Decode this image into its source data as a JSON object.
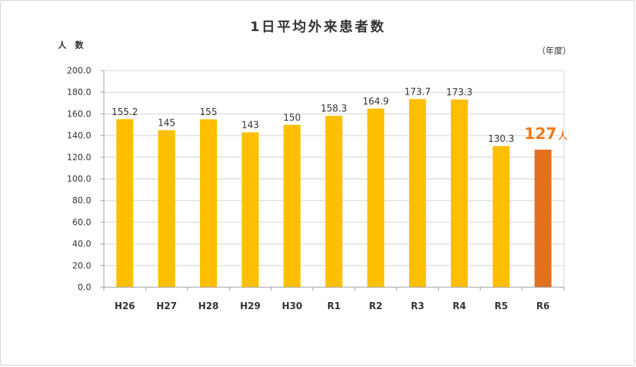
{
  "chart_data": {
    "type": "bar",
    "title": "1日平均外来患者数",
    "ylabel": "人 数",
    "unit_note": "（年度）",
    "categories": [
      "H26",
      "H27",
      "H28",
      "H29",
      "H30",
      "R1",
      "R2",
      "R3",
      "R4",
      "R5",
      "R6"
    ],
    "values": [
      155.2,
      145,
      155,
      143,
      150,
      158.3,
      164.9,
      173.7,
      173.3,
      130.3,
      127
    ],
    "data_labels": [
      "155.2",
      "145",
      "155",
      "143",
      "150",
      "158.3",
      "164.9",
      "173.7",
      "173.3",
      "130.3",
      "127"
    ],
    "highlight": {
      "index": 10,
      "label": "127",
      "unit": "人"
    },
    "ylim": [
      0,
      200
    ],
    "yticks": [
      "0.0",
      "20.0",
      "40.0",
      "60.0",
      "80.0",
      "100.0",
      "120.0",
      "140.0",
      "160.0",
      "180.0",
      "200.0"
    ],
    "grid": true,
    "colors": {
      "bar": "#fdbf00",
      "highlight_bar": "#e2711d",
      "highlight_text": "#ee7a1a",
      "grid": "#d0d0d0",
      "axis": "#999999"
    }
  }
}
